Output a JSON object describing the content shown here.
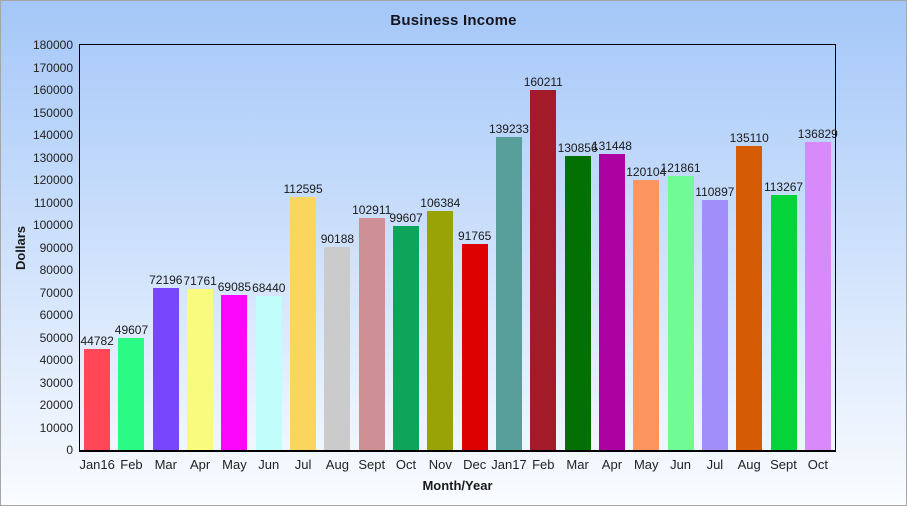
{
  "chart_data": {
    "type": "bar",
    "title": "Business Income",
    "xlabel": "Month/Year",
    "ylabel": "Dollars",
    "ylim": [
      0,
      180000
    ],
    "yticks": [
      0,
      10000,
      20000,
      30000,
      40000,
      50000,
      60000,
      70000,
      80000,
      90000,
      100000,
      110000,
      120000,
      130000,
      140000,
      150000,
      160000,
      170000,
      180000
    ],
    "grid": false,
    "legend_position": "none",
    "bar_value_labels_shown": true,
    "categories": [
      "Jan16",
      "Feb",
      "Mar",
      "Apr",
      "May",
      "Jun",
      "Jul",
      "Aug",
      "Sept",
      "Oct",
      "Nov",
      "Dec",
      "Jan17",
      "Feb",
      "Mar",
      "Apr",
      "May",
      "Jun",
      "Jul",
      "Aug",
      "Sept",
      "Oct"
    ],
    "values": [
      44782,
      49607,
      72196,
      71761,
      69085,
      68440,
      112595,
      90188,
      102911,
      99607,
      106384,
      91765,
      139233,
      160211,
      130856,
      131448,
      120104,
      121861,
      110897,
      135110,
      113267,
      136829
    ],
    "bar_colors": [
      "#FF4757",
      "#2BFB84",
      "#7847FB",
      "#F8FB7E",
      "#FB07FB",
      "#C0FDFB",
      "#FCD55F",
      "#CBCBCB",
      "#CE9095",
      "#0EA45A",
      "#9AA305",
      "#DD0101",
      "#589E9A",
      "#A31B29",
      "#027002",
      "#AC02A2",
      "#FD9560",
      "#70FB95",
      "#A18EFB",
      "#D55C04",
      "#04D33A",
      "#D88AFA"
    ]
  },
  "style": {
    "background_top": "#A4C7F8",
    "background_bottom": "#FAFCFF",
    "frame_border_color": "#A6A6A6",
    "plot_border_color": "#000000",
    "title_color": "#15151F",
    "label_color": "#222222"
  }
}
